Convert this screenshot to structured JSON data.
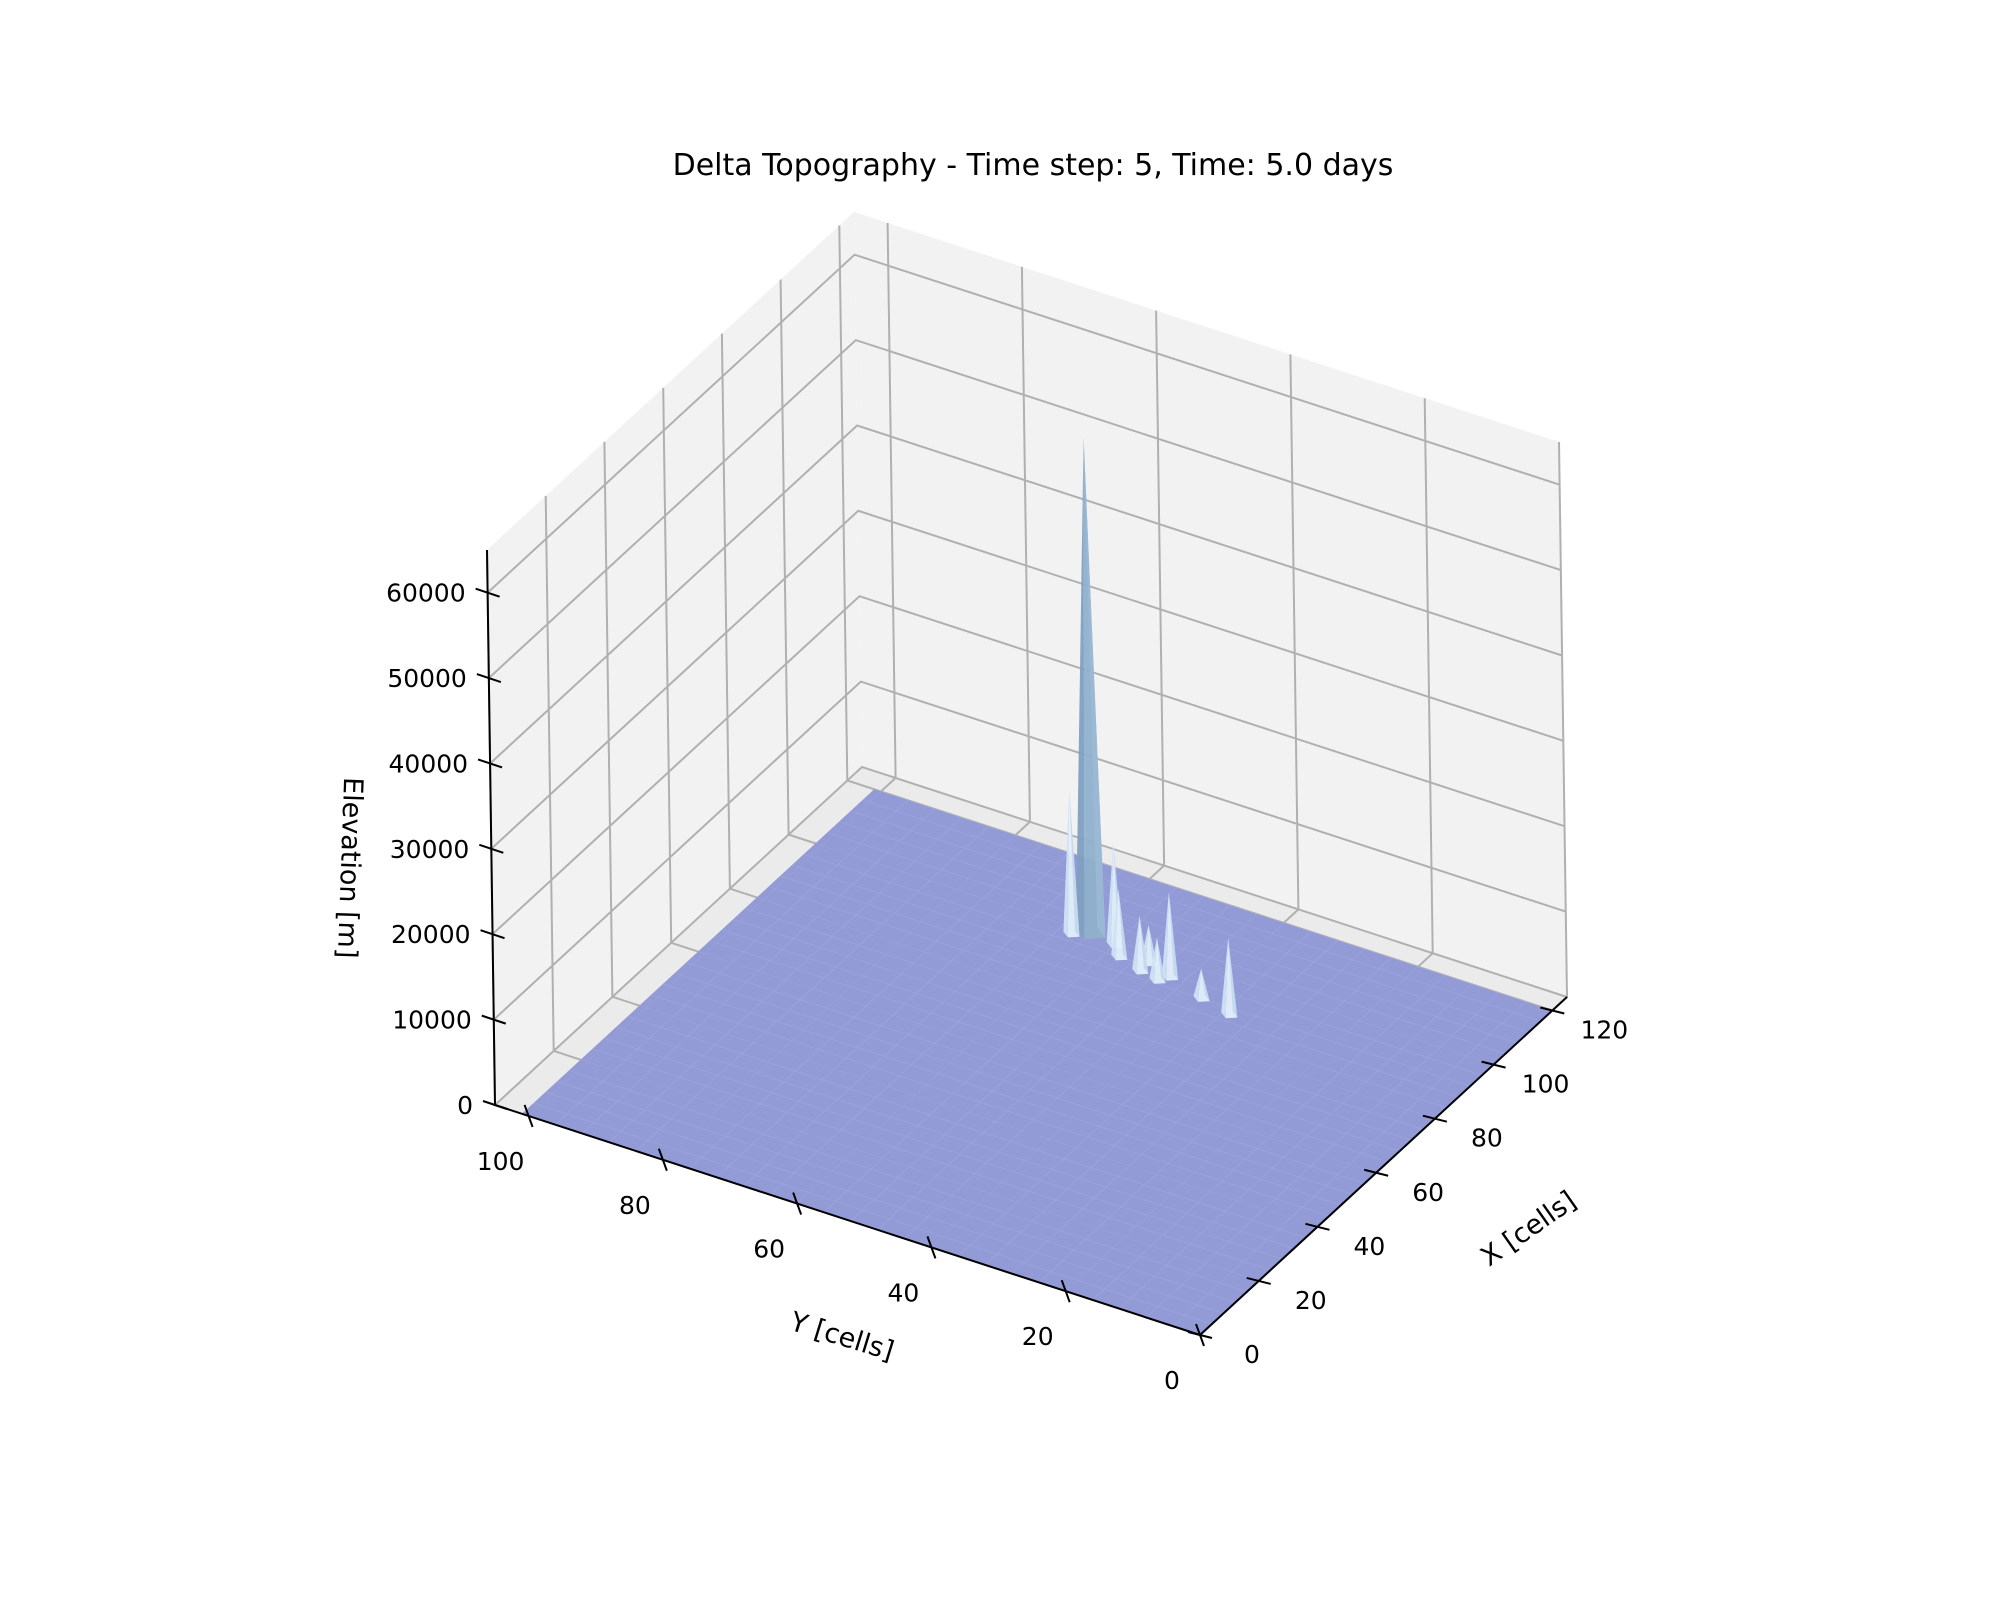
{
  "chart_data": {
    "type": "surface",
    "title": "Delta Topography - Time step: 5, Time: 5.0 days",
    "xlabel": "X [cells]",
    "ylabel": "Y [cells]",
    "zlabel": "Elevation [m]",
    "x_ticks": [
      0,
      20,
      40,
      60,
      80,
      100,
      120
    ],
    "y_ticks": [
      0,
      20,
      40,
      60,
      80,
      100
    ],
    "z_ticks": [
      0,
      10000,
      20000,
      30000,
      40000,
      50000,
      60000
    ],
    "x_tick_labels": [
      "0",
      "20",
      "40",
      "60",
      "80",
      "100",
      "120"
    ],
    "y_tick_labels": [
      "0",
      "20",
      "40",
      "60",
      "80",
      "100"
    ],
    "z_tick_labels": [
      "0",
      "10000",
      "20000",
      "30000",
      "40000",
      "50000",
      "60000"
    ],
    "xlim": [
      0,
      125
    ],
    "ylim": [
      0,
      105
    ],
    "zlim": [
      0,
      65000
    ],
    "grid": true,
    "base_elevation": 0,
    "peaks": [
      {
        "x": 100,
        "y": 60,
        "z": 58000
      },
      {
        "x": 98,
        "y": 62,
        "z": 17000
      },
      {
        "x": 99,
        "y": 56,
        "z": 12000
      },
      {
        "x": 96,
        "y": 54,
        "z": 8000
      },
      {
        "x": 94,
        "y": 50,
        "z": 6500
      },
      {
        "x": 95,
        "y": 46,
        "z": 10000
      },
      {
        "x": 93,
        "y": 47,
        "z": 5000
      },
      {
        "x": 90,
        "y": 35,
        "z": 9000
      },
      {
        "x": 97,
        "y": 50,
        "z": 4500
      },
      {
        "x": 92,
        "y": 40,
        "z": 3500
      }
    ],
    "colors": {
      "surface": "#8f98d6",
      "peak": "#8fb0cc",
      "spike": "#cfe2f4",
      "pane_side": "#f2f2f2",
      "pane_floor": "#ebebeb",
      "grid": "#b0b0b0"
    }
  }
}
